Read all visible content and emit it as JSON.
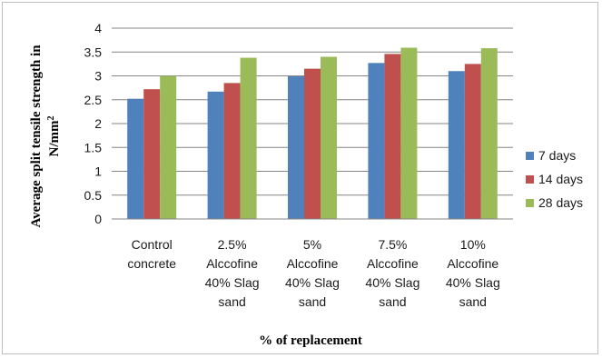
{
  "chart_data": {
    "type": "bar",
    "categories": [
      [
        "Control",
        "concrete"
      ],
      [
        "2.5%",
        "Alccofine",
        "40% Slag",
        "sand"
      ],
      [
        "5%",
        "Alccofine",
        "40% Slag",
        "sand"
      ],
      [
        "7.5%",
        "Alccofine",
        "40% Slag",
        "sand"
      ],
      [
        "10%",
        "Alccofine",
        "40% Slag",
        "sand"
      ]
    ],
    "series": [
      {
        "name": "7 days",
        "color": "#4f81bd",
        "values": [
          2.52,
          2.67,
          2.99,
          3.27,
          3.1
        ]
      },
      {
        "name": "14 days",
        "color": "#c0504d",
        "values": [
          2.72,
          2.85,
          3.15,
          3.46,
          3.25
        ]
      },
      {
        "name": "28 days",
        "color": "#9bbb59",
        "values": [
          3.0,
          3.38,
          3.4,
          3.59,
          3.58
        ]
      }
    ],
    "xlabel": "% of replacement",
    "ylabel_line1": "Average split tensile strength in",
    "ylabel_line2": "N/mm",
    "ylabel_superscript": "2",
    "ylim": [
      0,
      4
    ],
    "yticks": [
      "0",
      "0.5",
      "1",
      "1.5",
      "2",
      "2.5",
      "3",
      "3.5",
      "4"
    ],
    "grid": true,
    "legend_position": "right"
  }
}
